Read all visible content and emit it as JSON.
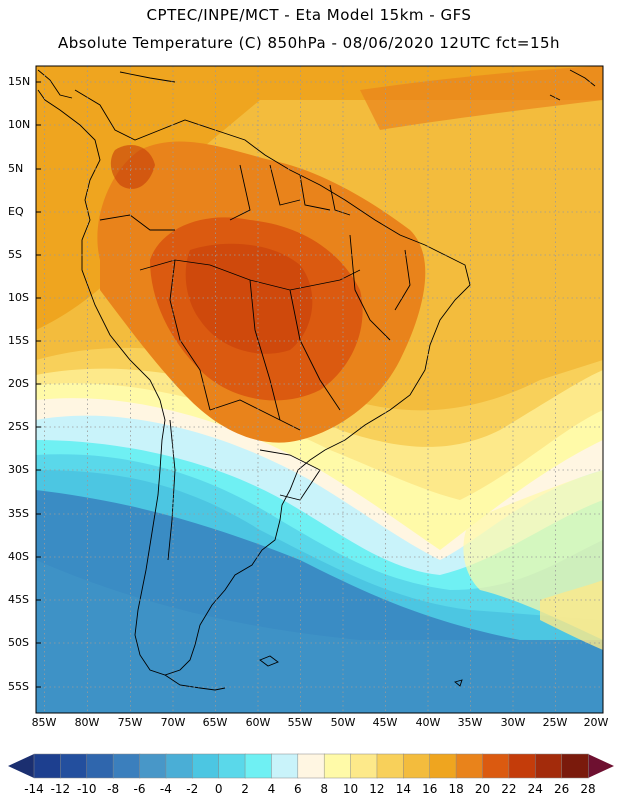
{
  "header": {
    "line1": "CPTEC/INPE/MCT -  Eta Model 15km - GFS",
    "line2": "Absolute Temperature (C) 850hPa - 08/06/2020 12UTC fct=15h"
  },
  "axes": {
    "lat_labels": [
      "15N",
      "10N",
      "5N",
      "EQ",
      "5S",
      "10S",
      "15S",
      "20S",
      "25S",
      "30S",
      "35S",
      "40S",
      "45S",
      "50S",
      "55S"
    ],
    "lon_labels": [
      "85W",
      "80W",
      "75W",
      "70W",
      "65W",
      "60W",
      "55W",
      "50W",
      "45W",
      "40W",
      "35W",
      "30W",
      "25W",
      "20W"
    ]
  },
  "colorbar": {
    "labels": [
      "-14",
      "-12",
      "-10",
      "-8",
      "-6",
      "-4",
      "-2",
      "0",
      "2",
      "4",
      "6",
      "8",
      "10",
      "12",
      "14",
      "16",
      "18",
      "20",
      "22",
      "24",
      "26",
      "28"
    ],
    "colors": [
      "#1d3f8f",
      "#234f9e",
      "#2f66ad",
      "#3b7fbd",
      "#4897c8",
      "#4aaed6",
      "#4cc6e2",
      "#5ad8ea",
      "#6ff0f3",
      "#c9f3fa",
      "#fff6e2",
      "#fffaa8",
      "#fde98a",
      "#f8d05a",
      "#f3bc3d",
      "#efa51f",
      "#e9831b",
      "#db5a10",
      "#c43c0a",
      "#a32b0b",
      "#7a1a0c"
    ],
    "low_color": "#1b2f70",
    "high_color": "#6e1030"
  }
}
